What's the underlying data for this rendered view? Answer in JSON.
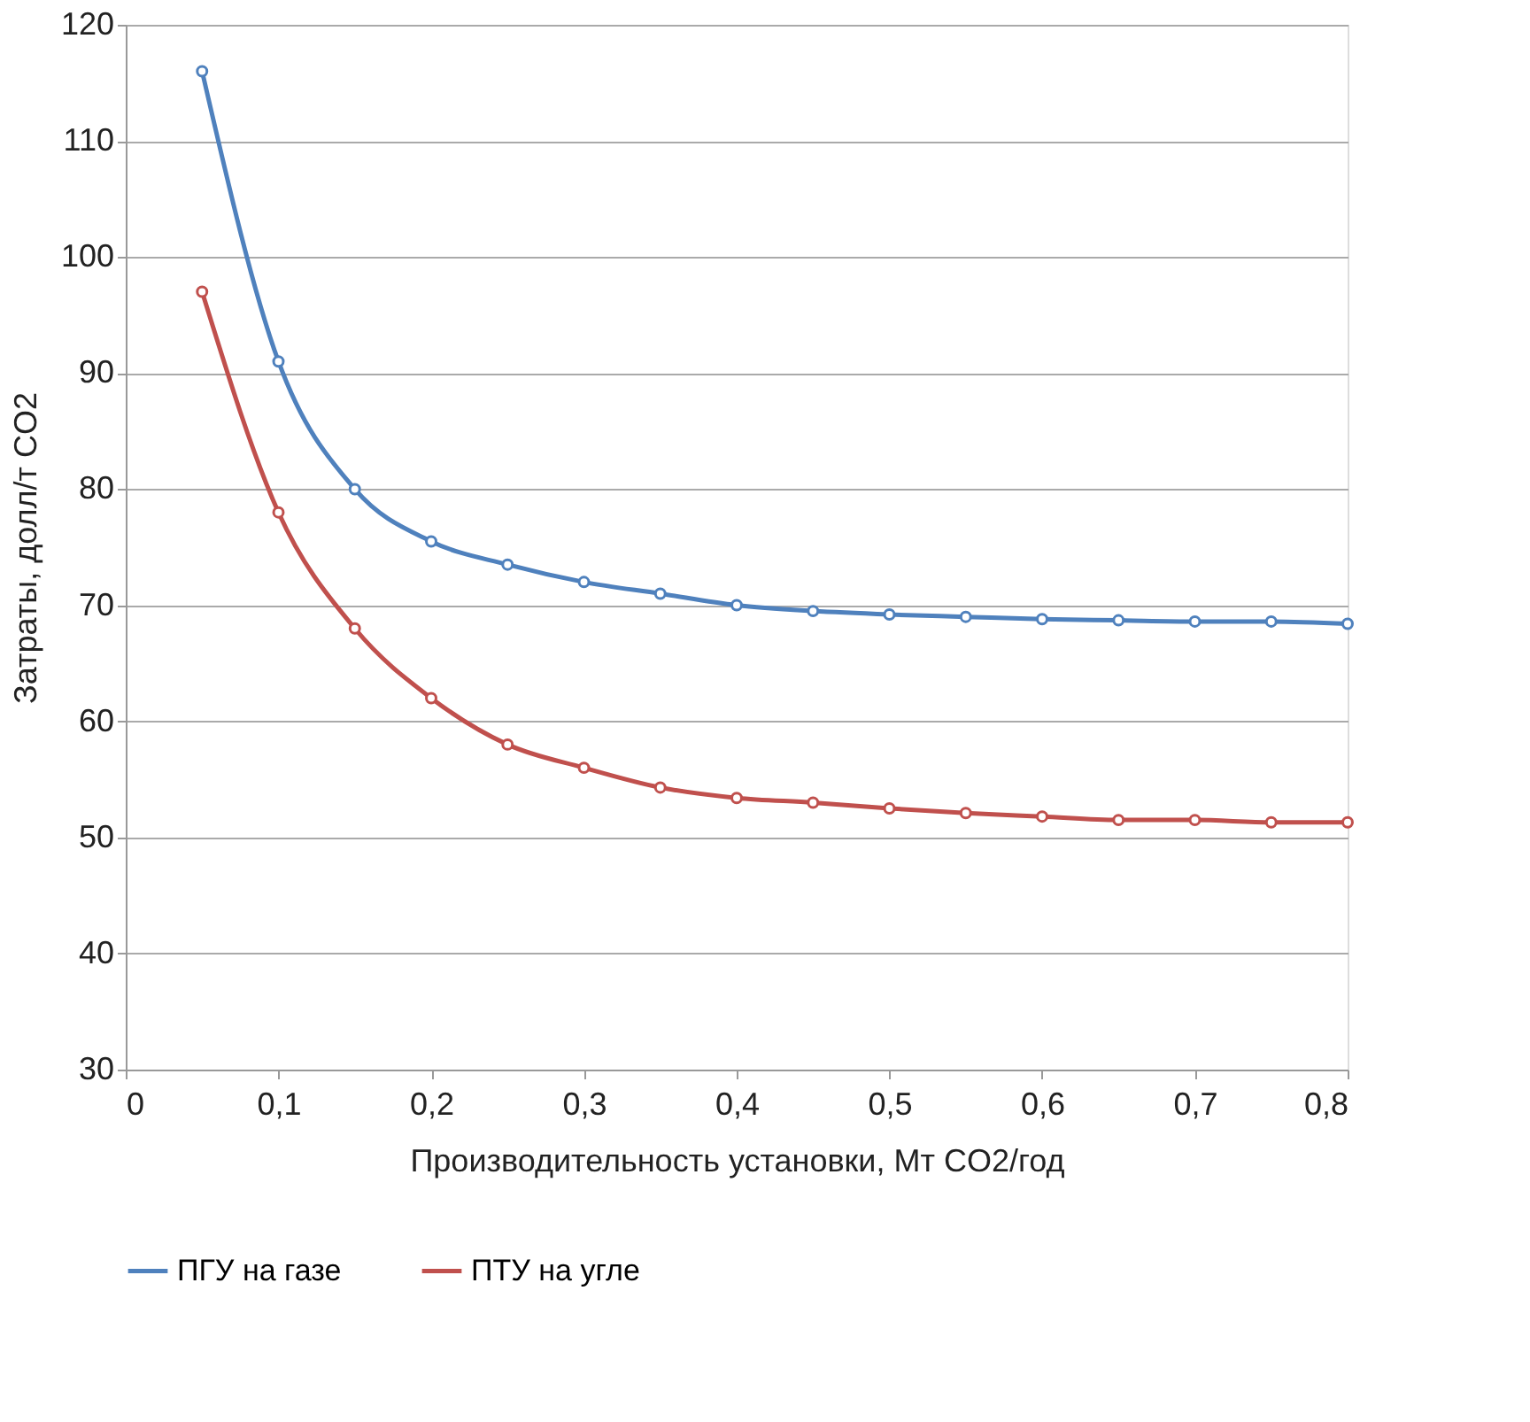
{
  "chart_data": {
    "type": "line",
    "xlabel": "Производительность установки, Мт CO2/год",
    "ylabel": "Затраты, долл/т CO2",
    "x": [
      0.05,
      0.1,
      0.15,
      0.2,
      0.25,
      0.3,
      0.35,
      0.4,
      0.45,
      0.5,
      0.55,
      0.6,
      0.65,
      0.7,
      0.75,
      0.8
    ],
    "series": [
      {
        "name": "ПГУ на газе",
        "color": "#4f81bd",
        "values": [
          116,
          91,
          80,
          75.5,
          73.5,
          72,
          71,
          70,
          69.5,
          69.2,
          69,
          68.8,
          68.7,
          68.6,
          68.6,
          68.4
        ]
      },
      {
        "name": "ПТУ на угле",
        "color": "#c0504d",
        "values": [
          97,
          78,
          68,
          62,
          58,
          56,
          54.3,
          53.4,
          53,
          52.5,
          52.1,
          51.8,
          51.5,
          51.5,
          51.3,
          51.3
        ]
      }
    ],
    "xlim": [
      0,
      0.8
    ],
    "xticks": [
      {
        "value": 0,
        "label": "0"
      },
      {
        "value": 0.1,
        "label": "0,1"
      },
      {
        "value": 0.2,
        "label": "0,2"
      },
      {
        "value": 0.3,
        "label": "0,3"
      },
      {
        "value": 0.4,
        "label": "0,4"
      },
      {
        "value": 0.5,
        "label": "0,5"
      },
      {
        "value": 0.6,
        "label": "0,6"
      },
      {
        "value": 0.7,
        "label": "0,7"
      },
      {
        "value": 0.8,
        "label": "0,8"
      }
    ],
    "ylim": [
      30,
      120
    ],
    "yticks": [
      30,
      40,
      50,
      60,
      70,
      80,
      90,
      100,
      110,
      120
    ],
    "grid": "y",
    "legend": "bottom",
    "marker": "circle",
    "line_style": "solid"
  }
}
